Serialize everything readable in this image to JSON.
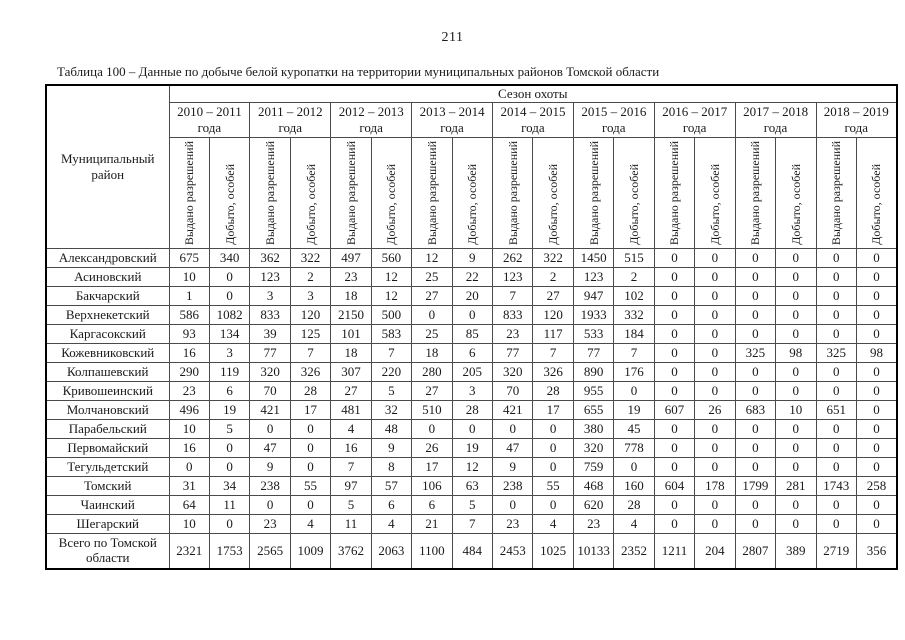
{
  "page": {
    "number": "211",
    "caption": "Таблица 100 – Данные по добыче белой куропатки на территории муниципальных районов Томской области"
  },
  "table": {
    "district_header": "Муниципальный район",
    "season_group_header": "Сезон охоты",
    "seasons": [
      {
        "range": "2010 – 2011",
        "suffix": "года"
      },
      {
        "range": "2011 – 2012",
        "suffix": "года"
      },
      {
        "range": "2012 – 2013",
        "suffix": "года"
      },
      {
        "range": "2013 – 2014",
        "suffix": "года"
      },
      {
        "range": "2014 – 2015",
        "suffix": "года"
      },
      {
        "range": "2015 – 2016",
        "suffix": "года"
      },
      {
        "range": "2016 – 2017",
        "suffix": "года"
      },
      {
        "range": "2017 – 2018",
        "suffix": "года"
      },
      {
        "range": "2018 – 2019",
        "suffix": "года"
      }
    ],
    "subheaders": {
      "permits": "Выдано разрешений",
      "harvested": "Добыто, особей"
    },
    "rows": [
      {
        "district": "Александровский",
        "values": [
          675,
          340,
          362,
          322,
          497,
          560,
          12,
          9,
          262,
          322,
          1450,
          515,
          0,
          0,
          0,
          0,
          0,
          0
        ]
      },
      {
        "district": "Асиновский",
        "values": [
          10,
          0,
          123,
          2,
          23,
          12,
          25,
          22,
          123,
          2,
          123,
          2,
          0,
          0,
          0,
          0,
          0,
          0
        ]
      },
      {
        "district": "Бакчарский",
        "values": [
          1,
          0,
          3,
          3,
          18,
          12,
          27,
          20,
          7,
          27,
          947,
          102,
          0,
          0,
          0,
          0,
          0,
          0
        ]
      },
      {
        "district": "Верхнекетский",
        "values": [
          586,
          1082,
          833,
          120,
          2150,
          500,
          0,
          0,
          833,
          120,
          1933,
          332,
          0,
          0,
          0,
          0,
          0,
          0
        ]
      },
      {
        "district": "Каргасокский",
        "values": [
          93,
          134,
          39,
          125,
          101,
          583,
          25,
          85,
          23,
          117,
          533,
          184,
          0,
          0,
          0,
          0,
          0,
          0
        ]
      },
      {
        "district": "Кожевниковский",
        "values": [
          16,
          3,
          77,
          7,
          18,
          7,
          18,
          6,
          77,
          7,
          77,
          7,
          0,
          0,
          325,
          98,
          325,
          98
        ]
      },
      {
        "district": "Колпашевский",
        "values": [
          290,
          119,
          320,
          326,
          307,
          220,
          280,
          205,
          320,
          326,
          890,
          176,
          0,
          0,
          0,
          0,
          0,
          0
        ]
      },
      {
        "district": "Кривошеинский",
        "values": [
          23,
          6,
          70,
          28,
          27,
          5,
          27,
          3,
          70,
          28,
          955,
          0,
          0,
          0,
          0,
          0,
          0,
          0
        ]
      },
      {
        "district": "Молчановский",
        "values": [
          496,
          19,
          421,
          17,
          481,
          32,
          510,
          28,
          421,
          17,
          655,
          19,
          607,
          26,
          683,
          10,
          651,
          0
        ]
      },
      {
        "district": "Парабельский",
        "values": [
          10,
          5,
          0,
          0,
          4,
          48,
          0,
          0,
          0,
          0,
          380,
          45,
          0,
          0,
          0,
          0,
          0,
          0
        ]
      },
      {
        "district": "Первомайский",
        "values": [
          16,
          0,
          47,
          0,
          16,
          9,
          26,
          19,
          47,
          0,
          320,
          778,
          0,
          0,
          0,
          0,
          0,
          0
        ]
      },
      {
        "district": "Тегульдетский",
        "values": [
          0,
          0,
          9,
          0,
          7,
          8,
          17,
          12,
          9,
          0,
          759,
          0,
          0,
          0,
          0,
          0,
          0,
          0
        ]
      },
      {
        "district": "Томский",
        "values": [
          31,
          34,
          238,
          55,
          97,
          57,
          106,
          63,
          238,
          55,
          468,
          160,
          604,
          178,
          1799,
          281,
          1743,
          258
        ]
      },
      {
        "district": "Чаинский",
        "values": [
          64,
          11,
          0,
          0,
          5,
          6,
          6,
          5,
          0,
          0,
          620,
          28,
          0,
          0,
          0,
          0,
          0,
          0
        ]
      },
      {
        "district": "Шегарский",
        "values": [
          10,
          0,
          23,
          4,
          11,
          4,
          21,
          7,
          23,
          4,
          23,
          4,
          0,
          0,
          0,
          0,
          0,
          0
        ]
      }
    ],
    "total": {
      "district": "Всего по Томской области",
      "values": [
        2321,
        1753,
        2565,
        1009,
        3762,
        2063,
        1100,
        484,
        2453,
        1025,
        10133,
        2352,
        1211,
        204,
        2807,
        389,
        2719,
        356
      ]
    }
  }
}
